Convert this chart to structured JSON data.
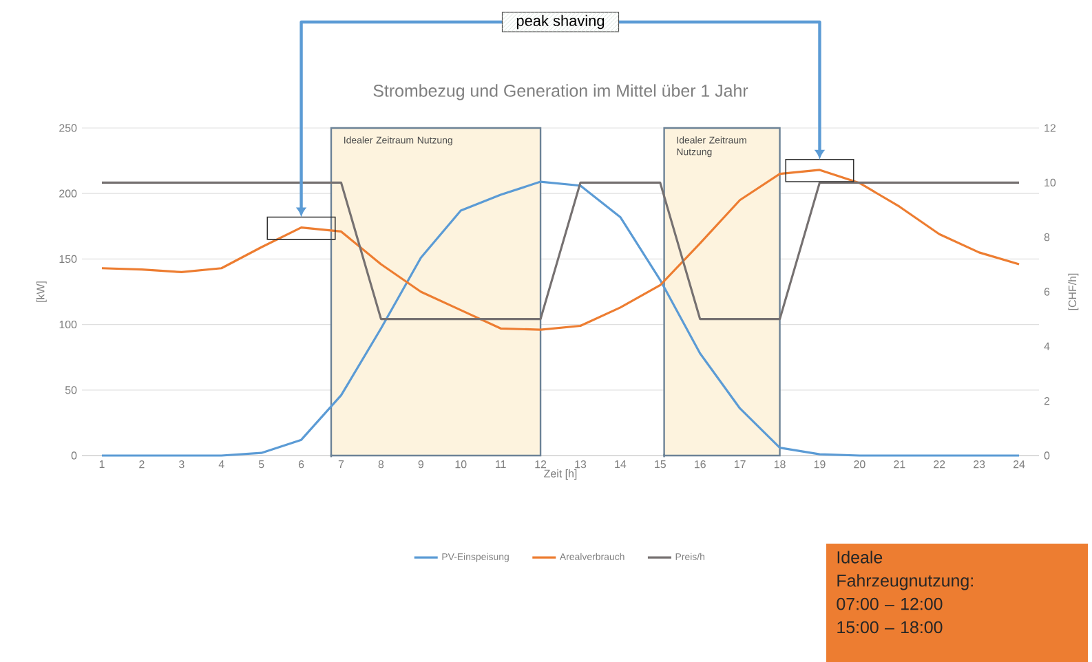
{
  "chart_data": {
    "type": "line",
    "title": "Strombezug und Generation im Mittel über 1 Jahr",
    "xlabel": "Zeit [h]",
    "ylabel": "[kW]",
    "y2label": "[CHF/h]",
    "x": [
      1,
      2,
      3,
      4,
      5,
      6,
      7,
      8,
      9,
      10,
      11,
      12,
      13,
      14,
      15,
      16,
      17,
      18,
      19,
      20,
      21,
      22,
      23,
      24
    ],
    "xlim": [
      0.5,
      24.5
    ],
    "xticks": [
      1,
      2,
      3,
      4,
      5,
      6,
      7,
      8,
      9,
      10,
      11,
      12,
      13,
      14,
      15,
      16,
      17,
      18,
      19,
      20,
      21,
      22,
      23,
      24
    ],
    "ylim": [
      0,
      250
    ],
    "yticks": [
      0,
      50,
      100,
      150,
      200,
      250
    ],
    "y2lim": [
      0,
      12
    ],
    "y2ticks": [
      0,
      2,
      4,
      6,
      8,
      10,
      12
    ],
    "series": [
      {
        "name": "PV-Einspeisung",
        "color": "#5b9bd5",
        "values": [
          0,
          0,
          0,
          0,
          2,
          12,
          46,
          97,
          151,
          187,
          199,
          209,
          206,
          182,
          134,
          78,
          36,
          6,
          1,
          0,
          0,
          0,
          0,
          0
        ]
      },
      {
        "name": "Arealverbrauch",
        "color": "#ed7d31",
        "values": [
          143,
          142,
          140,
          143,
          159,
          174,
          171,
          146,
          125,
          111,
          97,
          96,
          99,
          113,
          130,
          162,
          195,
          215,
          218,
          208,
          190,
          169,
          155,
          146
        ]
      },
      {
        "name": "Preis/h",
        "color": "#767171",
        "axis": "y2",
        "values": [
          10,
          10,
          10,
          10,
          10,
          10,
          10,
          5,
          5,
          5,
          5,
          5,
          10,
          10,
          10,
          5,
          5,
          5,
          10,
          10,
          10,
          10,
          10,
          10
        ]
      }
    ],
    "bands": [
      {
        "axis": "x",
        "from": 6.75,
        "to": 12,
        "label": "Idealer Zeitraum Nutzung",
        "color": "#fdf3de"
      },
      {
        "axis": "x",
        "from": 15.1,
        "to": 18,
        "label": "Idealer Zeitraum Nutzung",
        "color": "#fdf3de"
      }
    ],
    "annotations": [
      "peak shaving",
      "Ideale Fahrzeugnutzung:",
      "07:00 – 12:00",
      "15:00 – 18:00"
    ],
    "grid": "y",
    "legend": "bottom"
  }
}
